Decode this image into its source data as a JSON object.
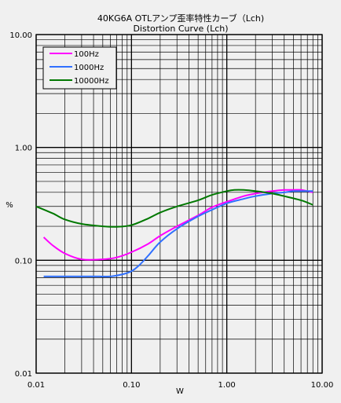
{
  "chart_data": {
    "type": "line",
    "title": "40KG6A OTLアンプ歪率特性カーブ（Lch)",
    "subtitle": "Distortion Curve (Lch)",
    "xlabel": "W",
    "ylabel": "%",
    "xscale": "log",
    "yscale": "log",
    "xlim": [
      0.01,
      10
    ],
    "ylim": [
      0.01,
      10
    ],
    "grid": true,
    "legend_position": "top-left",
    "x_ticks": [
      "0.01",
      "0.10",
      "1.00",
      "10.00"
    ],
    "y_ticks": [
      "0.01",
      "0.10",
      "1.00",
      "10.00"
    ],
    "series": [
      {
        "name": "100Hz",
        "color": "#ff00ff",
        "points": [
          [
            0.012,
            0.16
          ],
          [
            0.015,
            0.135
          ],
          [
            0.02,
            0.115
          ],
          [
            0.03,
            0.102
          ],
          [
            0.05,
            0.102
          ],
          [
            0.07,
            0.106
          ],
          [
            0.1,
            0.118
          ],
          [
            0.15,
            0.14
          ],
          [
            0.2,
            0.165
          ],
          [
            0.3,
            0.2
          ],
          [
            0.5,
            0.25
          ],
          [
            0.7,
            0.295
          ],
          [
            1.0,
            0.33
          ],
          [
            1.5,
            0.37
          ],
          [
            2.0,
            0.39
          ],
          [
            3.0,
            0.41
          ],
          [
            4.0,
            0.42
          ],
          [
            5.0,
            0.42
          ],
          [
            6.0,
            0.42
          ],
          [
            8.0,
            0.4
          ]
        ]
      },
      {
        "name": "1000Hz",
        "color": "#3070ff",
        "points": [
          [
            0.012,
            0.072
          ],
          [
            0.02,
            0.072
          ],
          [
            0.04,
            0.072
          ],
          [
            0.06,
            0.072
          ],
          [
            0.08,
            0.075
          ],
          [
            0.1,
            0.08
          ],
          [
            0.12,
            0.09
          ],
          [
            0.15,
            0.11
          ],
          [
            0.2,
            0.145
          ],
          [
            0.3,
            0.19
          ],
          [
            0.5,
            0.245
          ],
          [
            0.7,
            0.28
          ],
          [
            1.0,
            0.32
          ],
          [
            1.5,
            0.35
          ],
          [
            2.0,
            0.37
          ],
          [
            3.0,
            0.39
          ],
          [
            4.0,
            0.4
          ],
          [
            5.0,
            0.41
          ],
          [
            6.0,
            0.41
          ],
          [
            8.0,
            0.41
          ]
        ]
      },
      {
        "name": "10000Hz",
        "color": "#007800",
        "points": [
          [
            0.01,
            0.3
          ],
          [
            0.015,
            0.26
          ],
          [
            0.02,
            0.23
          ],
          [
            0.03,
            0.21
          ],
          [
            0.05,
            0.2
          ],
          [
            0.07,
            0.198
          ],
          [
            0.1,
            0.205
          ],
          [
            0.15,
            0.235
          ],
          [
            0.2,
            0.265
          ],
          [
            0.3,
            0.3
          ],
          [
            0.5,
            0.34
          ],
          [
            0.7,
            0.38
          ],
          [
            1.0,
            0.41
          ],
          [
            1.2,
            0.42
          ],
          [
            1.5,
            0.42
          ],
          [
            2.0,
            0.41
          ],
          [
            3.0,
            0.39
          ],
          [
            4.0,
            0.37
          ],
          [
            6.0,
            0.34
          ],
          [
            8.0,
            0.31
          ]
        ]
      }
    ]
  }
}
